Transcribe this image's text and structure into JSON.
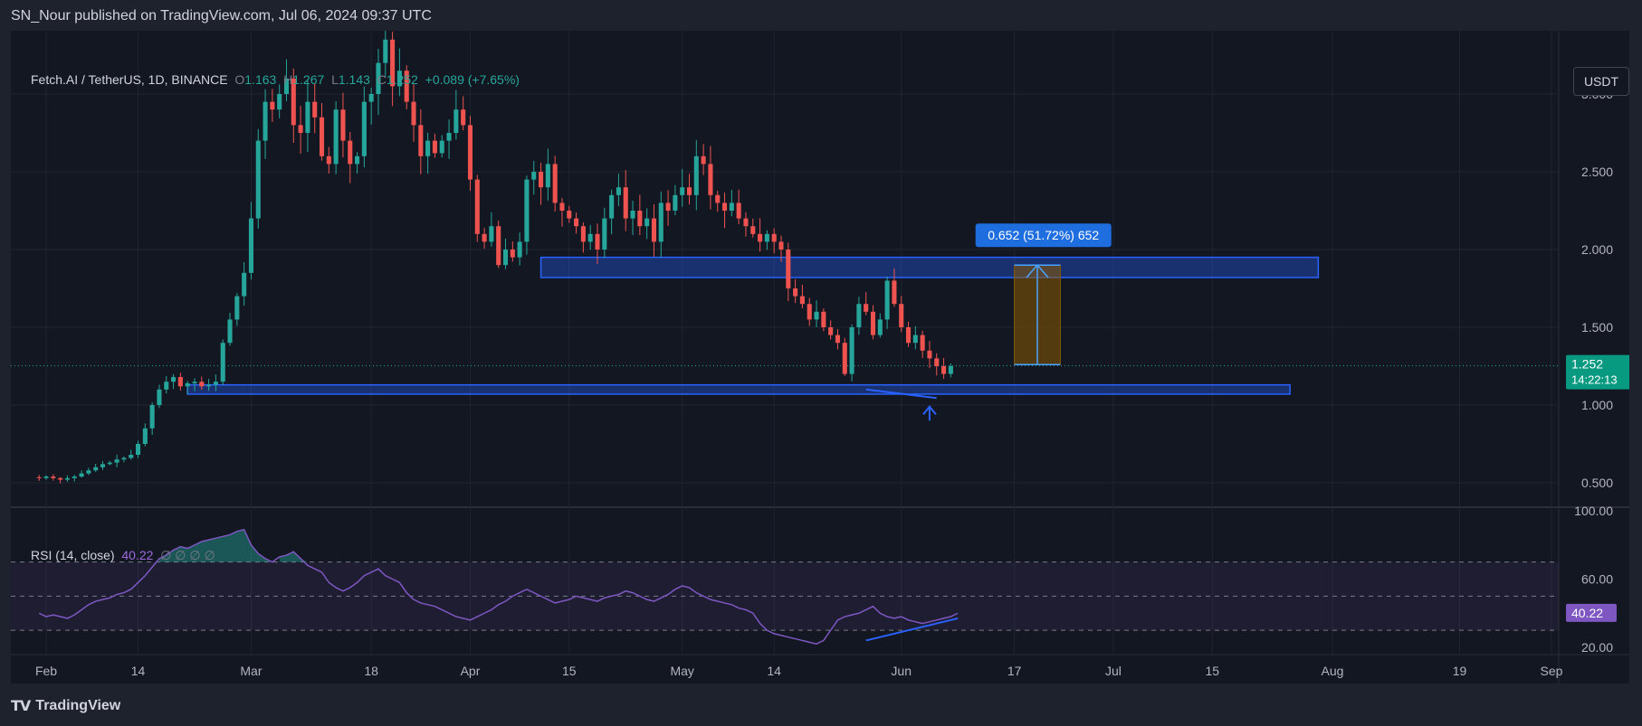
{
  "header": {
    "published": "SN_Nour published on TradingView.com, Jul 06, 2024 09:37 UTC"
  },
  "footer": {
    "brand": "TradingView",
    "logo_icon": "tradingview-logo-icon"
  },
  "toolbar": {
    "currency_label": "USDT"
  },
  "legend": {
    "symbol": "Fetch.AI / TetherUS, 1D, BINANCE",
    "o_label": "O",
    "o_value": "1.163",
    "h_label": "H",
    "h_value": "1.267",
    "l_label": "L",
    "l_value": "1.143",
    "c_label": "C",
    "c_value": "1.252",
    "change": "+0.089 (+7.65%)"
  },
  "rsi_legend": {
    "label": "RSI (14, close)",
    "value": "40.22",
    "extras": "∅ ∅ ∅ ∅"
  },
  "price_badge": {
    "value": "1.252",
    "countdown": "14:22:13"
  },
  "rsi_badge": {
    "value": "40.22"
  },
  "measure_label": "0.652 (51.72%) 652",
  "colors": {
    "up": "#26a69a",
    "down": "#ef5350",
    "zone": "#2962ff",
    "rsi": "#7e57c2",
    "measure": "#2962ff",
    "target_fill": "#8a5a00"
  },
  "chart_data": [
    {
      "type": "candlestick",
      "title": "Fetch.AI / TetherUS, 1D, BINANCE",
      "ylim": [
        0.3,
        3.7
      ],
      "y_ticks": [
        3.0,
        2.5,
        2.0,
        1.5,
        1.0,
        0.5
      ],
      "y_tick_labels": [
        "3.000",
        "2.500",
        "2.000",
        "1.500",
        "1.000",
        "0.500"
      ],
      "x_axis_labels": [
        "Feb",
        "14",
        "Mar",
        "18",
        "Apr",
        "15",
        "May",
        "14",
        "Jun",
        "17",
        "Jul",
        "15",
        "Aug",
        "19",
        "Sep"
      ],
      "x_axis_dates": [
        "2024-02-01",
        "2024-02-14",
        "2024-03-01",
        "2024-03-18",
        "2024-04-01",
        "2024-04-15",
        "2024-05-01",
        "2024-05-14",
        "2024-06-01",
        "2024-06-17",
        "2024-07-01",
        "2024-07-15",
        "2024-08-01",
        "2024-08-19",
        "2024-09-01"
      ],
      "last_price": 1.252,
      "close_series": [
        0.53,
        0.54,
        0.53,
        0.52,
        0.53,
        0.54,
        0.56,
        0.58,
        0.6,
        0.62,
        0.63,
        0.65,
        0.66,
        0.68,
        0.75,
        0.85,
        1.0,
        1.1,
        1.15,
        1.18,
        1.12,
        1.14,
        1.15,
        1.12,
        1.13,
        1.15,
        1.4,
        1.55,
        1.7,
        1.85,
        2.2,
        2.7,
        2.95,
        2.9,
        3.0,
        3.1,
        2.8,
        2.75,
        2.95,
        2.85,
        2.6,
        2.55,
        2.9,
        2.7,
        2.55,
        2.6,
        2.95,
        3.0,
        3.2,
        3.35,
        3.05,
        3.15,
        2.95,
        2.8,
        2.6,
        2.7,
        2.62,
        2.7,
        2.75,
        2.9,
        2.8,
        2.45,
        2.1,
        2.05,
        2.15,
        1.9,
        2.0,
        1.95,
        2.05,
        2.45,
        2.5,
        2.4,
        2.55,
        2.3,
        2.25,
        2.2,
        2.15,
        2.05,
        2.1,
        2.0,
        2.2,
        2.35,
        2.4,
        2.2,
        2.25,
        2.15,
        2.2,
        2.05,
        2.3,
        2.25,
        2.35,
        2.4,
        2.35,
        2.6,
        2.55,
        2.35,
        2.3,
        2.25,
        2.3,
        2.2,
        2.15,
        2.1,
        2.05,
        2.1,
        2.05,
        2.0,
        1.75,
        1.7,
        1.65,
        1.55,
        1.6,
        1.5,
        1.45,
        1.4,
        1.2,
        1.5,
        1.65,
        1.6,
        1.45,
        1.55,
        1.8,
        1.65,
        1.5,
        1.4,
        1.45,
        1.35,
        1.3,
        1.25,
        1.2,
        1.25
      ]
    },
    {
      "type": "line",
      "title": "RSI (14, close)",
      "ylim": [
        15,
        100
      ],
      "y_ticks": [
        100,
        60,
        20
      ],
      "y_tick_labels": [
        "100.00",
        "60.00",
        "20.00"
      ],
      "bands": [
        70,
        50,
        30
      ],
      "last_value": 40.22,
      "values": [
        40,
        38,
        39,
        38,
        37,
        39,
        42,
        45,
        47,
        48,
        49,
        51,
        52,
        54,
        58,
        62,
        67,
        72,
        74,
        77,
        79,
        78,
        80,
        82,
        83,
        84,
        85,
        86,
        88,
        89,
        80,
        75,
        72,
        70,
        73,
        74,
        76,
        72,
        68,
        66,
        64,
        58,
        55,
        53,
        55,
        58,
        62,
        64,
        66,
        62,
        60,
        58,
        52,
        48,
        46,
        45,
        44,
        42,
        40,
        38,
        37,
        36,
        38,
        40,
        42,
        45,
        47,
        50,
        52,
        54,
        52,
        50,
        48,
        46,
        47,
        48,
        50,
        49,
        48,
        47,
        49,
        50,
        51,
        53,
        52,
        50,
        48,
        47,
        49,
        51,
        54,
        56,
        55,
        52,
        50,
        48,
        47,
        46,
        45,
        43,
        42,
        40,
        34,
        30,
        28,
        27,
        26,
        25,
        24,
        23,
        22,
        24,
        30,
        36,
        38,
        39,
        40,
        42,
        44,
        40,
        38,
        37,
        38,
        36,
        35,
        34,
        35,
        36,
        37,
        38,
        40
      ]
    }
  ]
}
